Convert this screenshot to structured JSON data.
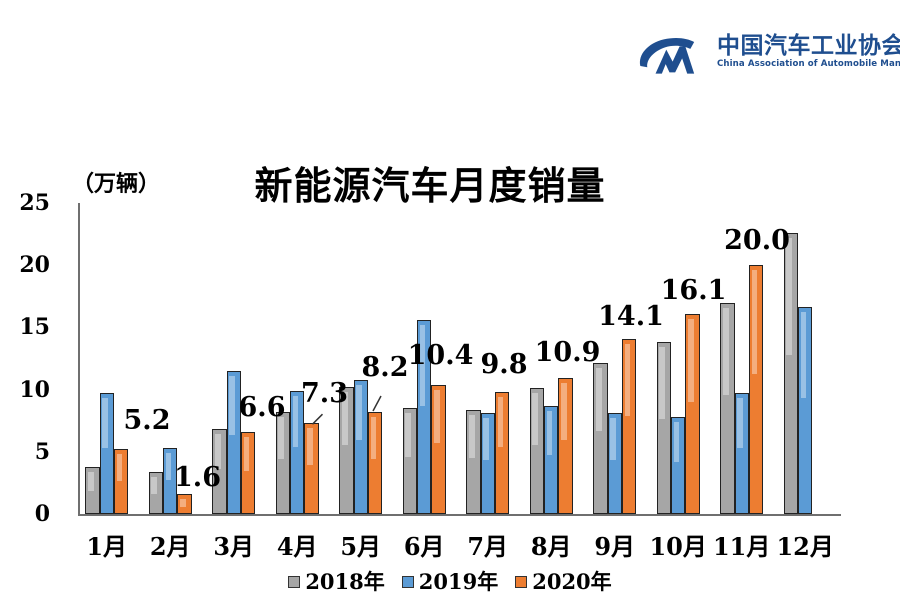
{
  "logo": {
    "org_name_cn": "中国汽车工业协会",
    "org_name_en": "China Association of Automobile Manufacturers",
    "brand_color": "#1F4E8F"
  },
  "chart_data": {
    "type": "bar",
    "title": "新能源汽车月度销量",
    "unit_label": "（万辆）",
    "xlabel": "",
    "ylabel": "",
    "categories": [
      "1月",
      "2月",
      "3月",
      "4月",
      "5月",
      "6月",
      "7月",
      "8月",
      "9月",
      "10月",
      "11月",
      "12月"
    ],
    "series": [
      {
        "name": "2018年",
        "color": "#A6A6A6",
        "values": [
          3.8,
          3.4,
          6.8,
          8.2,
          10.2,
          8.5,
          8.4,
          10.1,
          12.1,
          13.8,
          17.0,
          22.6
        ]
      },
      {
        "name": "2019年",
        "color": "#5B9BD5",
        "values": [
          9.7,
          5.3,
          11.5,
          9.9,
          10.8,
          15.6,
          8.1,
          8.7,
          8.1,
          7.8,
          9.7,
          16.6
        ]
      },
      {
        "name": "2020年",
        "color": "#ED7D31",
        "values": [
          5.2,
          1.6,
          6.6,
          7.3,
          8.2,
          10.4,
          9.8,
          10.9,
          14.1,
          16.1,
          20.0,
          null
        ],
        "data_labels": [
          "5.2",
          "1.6",
          "6.6",
          "7.3",
          "8.2",
          "10.4",
          "9.8",
          "10.9",
          "14.1",
          "16.1",
          "20.0",
          ""
        ]
      }
    ],
    "ylim": [
      0,
      25
    ],
    "yticks": [
      0,
      5,
      10,
      15,
      20,
      25
    ],
    "gridlines": false,
    "legend_position": "bottom",
    "axis_color": "#6F6F6F",
    "bar_outline_color": "#222222",
    "text_color": "#000000"
  }
}
